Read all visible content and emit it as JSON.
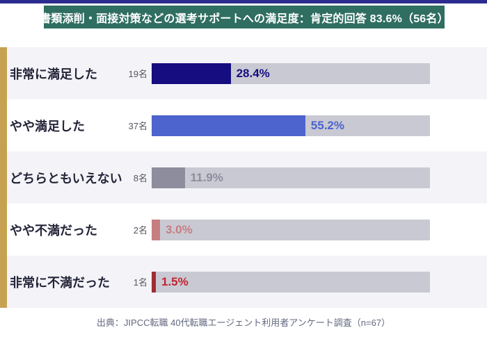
{
  "header": {
    "title": "書類添削・面接対策などの選考サポートへの満足度：肯定的回答 83.6%（56名）"
  },
  "footer": {
    "source_note": "出典：JIPCC転職 40代転職エージェント利用者アンケート調査（n=67）"
  },
  "colors": {
    "top_border": "#2c2c90",
    "header_bg": "#2f6e61",
    "header_text": "#ffffff",
    "accent_stripe": "#c6a14f",
    "row_alt_bg": "#f4f4f8",
    "track_bg": "#c9c9d3",
    "category_text": "#24243a",
    "count_text": "#55555e",
    "source_text": "#636880"
  },
  "chart_data": {
    "type": "bar",
    "orientation": "horizontal",
    "title": "書類添削・面接対策などの選考サポートへの満足度：肯定的回答 83.6%（56名）",
    "categories": [
      "非常に満足した",
      "やや満足した",
      "どちらともいえない",
      "やや不満だった",
      "非常に不満だった"
    ],
    "counts": [
      "19名",
      "37名",
      "8名",
      "2名",
      "1名"
    ],
    "values": [
      28.4,
      55.2,
      11.9,
      3.0,
      1.5
    ],
    "value_labels": [
      "28.4%",
      "55.2%",
      "11.9%",
      "3.0%",
      "1.5%"
    ],
    "bar_colors": [
      "#150d80",
      "#4d63cd",
      "#8d8d9d",
      "#c67e80",
      "#a12d34"
    ],
    "value_label_colors": [
      "#150d80",
      "#4d63cd",
      "#8d8d9d",
      "#c87e80",
      "#c2232e"
    ],
    "xlabel": "",
    "ylabel": "",
    "xlim": [
      0,
      100
    ],
    "grid": false,
    "legend": false,
    "source": "出典：JIPCC転職 40代転職エージェント利用者アンケート調査（n=67）"
  }
}
